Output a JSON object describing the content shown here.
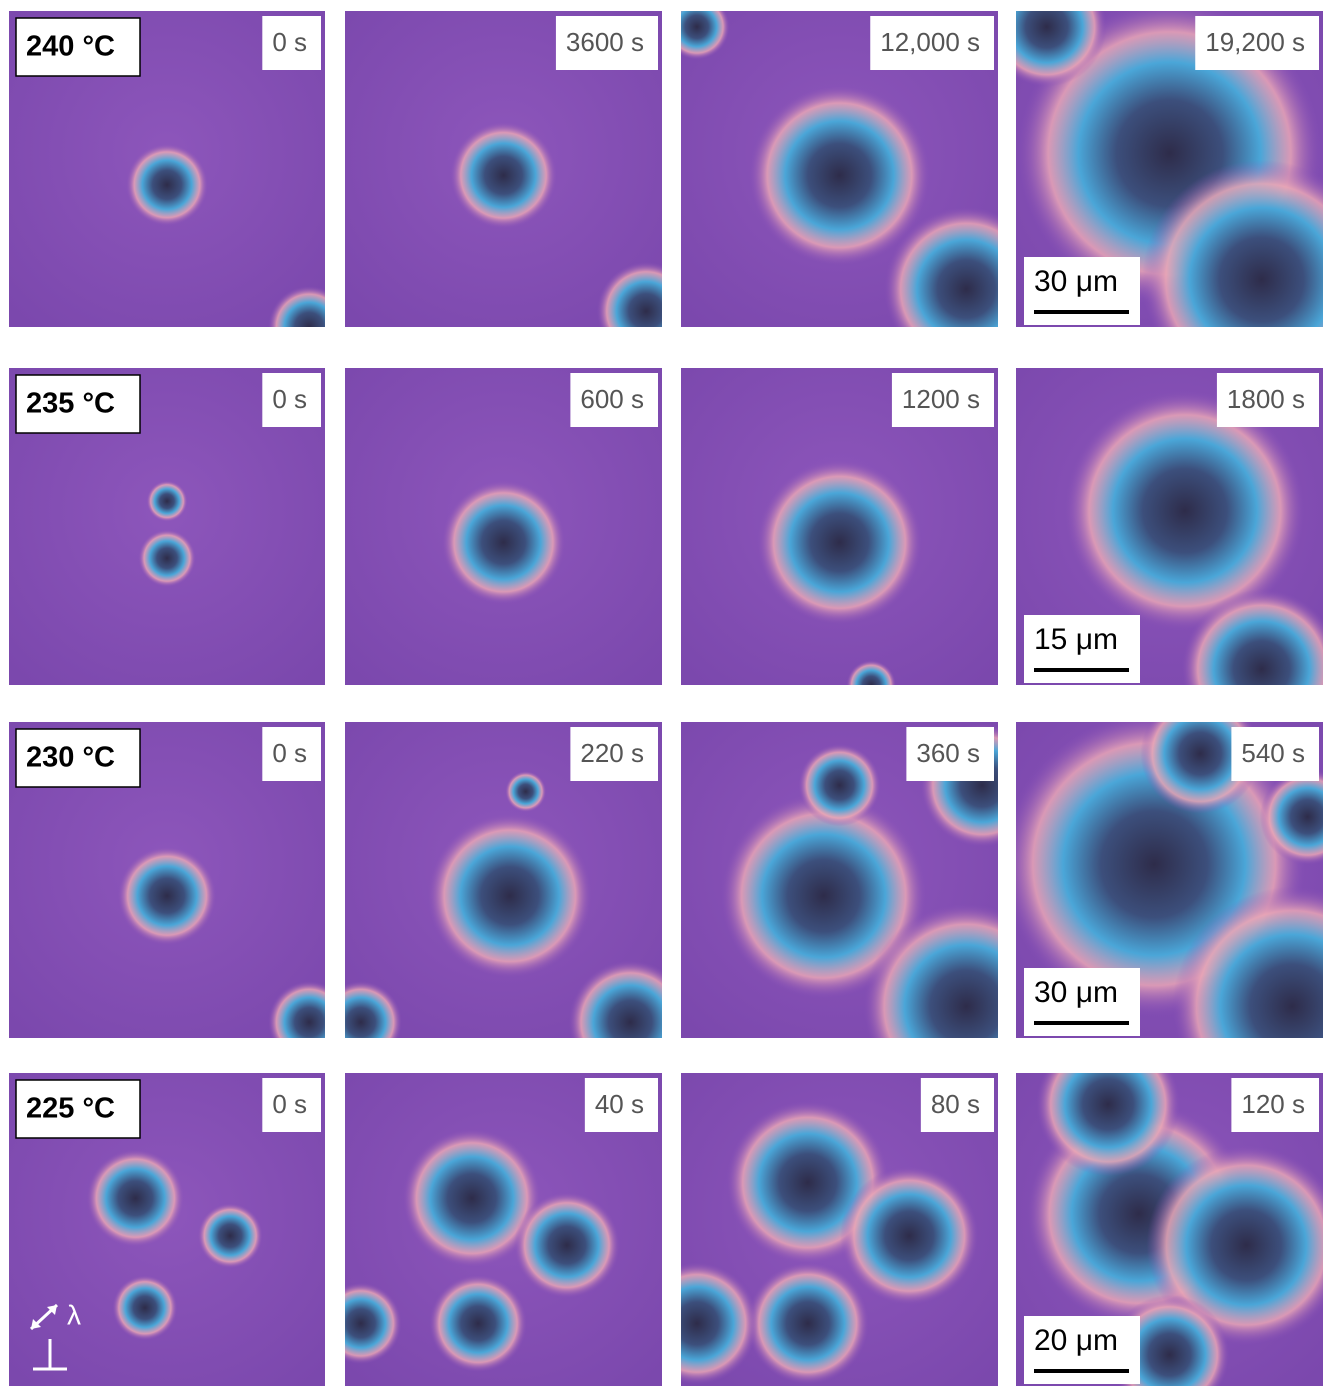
{
  "rows": [
    {
      "temperature": "240 °C",
      "times": [
        "0 s",
        "3600 s",
        "12,000 s",
        "19,200 s"
      ],
      "scale_bar": "30 μm"
    },
    {
      "temperature": "235 °C",
      "times": [
        "0 s",
        "600 s",
        "1200 s",
        "1800 s"
      ],
      "scale_bar": "15 μm"
    },
    {
      "temperature": "230 °C",
      "times": [
        "0 s",
        "220 s",
        "360 s",
        "540 s"
      ],
      "scale_bar": "30 μm"
    },
    {
      "temperature": "225 °C",
      "times": [
        "0 s",
        "40 s",
        "80 s",
        "120 s"
      ],
      "scale_bar": "20 μm"
    }
  ],
  "polarizer_label": "λ"
}
